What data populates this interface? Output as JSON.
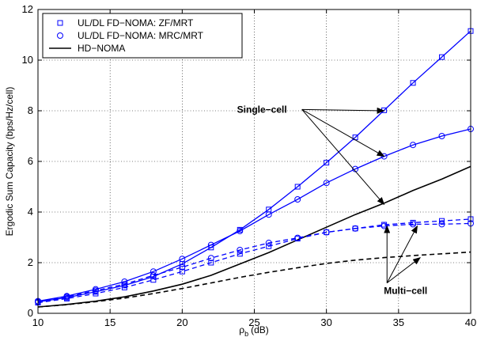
{
  "chart_data": {
    "type": "line",
    "xlabel_main": "ρ",
    "xlabel_sub": "b",
    "xlabel_unit": "(dB)",
    "ylabel": "Ergodic Sum Capacity (bps/Hz/cell)",
    "xlim": [
      10,
      40
    ],
    "ylim": [
      0,
      12
    ],
    "xticks": [
      10,
      15,
      20,
      25,
      30,
      35,
      40
    ],
    "yticks": [
      0,
      2,
      4,
      6,
      8,
      10,
      12
    ],
    "grid": "on",
    "legend_position": "top-left",
    "legend": [
      {
        "label": "UL/DL FD−NOMA: ZF/MRT",
        "marker": "square",
        "color": "#0000ff",
        "line": "none"
      },
      {
        "label": "UL/DL FD−NOMA: MRC/MRT",
        "marker": "circle",
        "color": "#0000ff",
        "line": "none"
      },
      {
        "label": "HD−NOMA",
        "marker": "none",
        "color": "#000000",
        "line": "solid"
      }
    ],
    "series": [
      {
        "name": "UL/DL FD−NOMA: ZF/MRT",
        "group": "Single−cell",
        "color": "#0000ff",
        "dash": "solid",
        "marker": "square",
        "x": [
          10,
          12,
          14,
          16,
          18,
          20,
          22,
          24,
          26,
          28,
          30,
          32,
          34,
          36,
          38,
          40
        ],
        "y": [
          0.45,
          0.62,
          0.85,
          1.1,
          1.45,
          1.95,
          2.6,
          3.3,
          4.1,
          5.0,
          5.95,
          6.95,
          8.02,
          9.1,
          10.12,
          11.15
        ]
      },
      {
        "name": "UL/DL FD−NOMA: MRC/MRT",
        "group": "Single−cell",
        "color": "#0000ff",
        "dash": "solid",
        "marker": "circle",
        "x": [
          10,
          12,
          14,
          16,
          18,
          20,
          22,
          24,
          26,
          28,
          30,
          32,
          34,
          36,
          38,
          40
        ],
        "y": [
          0.48,
          0.68,
          0.95,
          1.25,
          1.65,
          2.15,
          2.7,
          3.25,
          3.9,
          4.5,
          5.15,
          5.7,
          6.2,
          6.65,
          7.0,
          7.28
        ]
      },
      {
        "name": "HD−NOMA",
        "group": "Single−cell",
        "color": "#000000",
        "dash": "solid",
        "marker": "none",
        "x": [
          10,
          12,
          14,
          16,
          18,
          20,
          22,
          24,
          26,
          28,
          30,
          32,
          34,
          36,
          38,
          40
        ],
        "y": [
          0.25,
          0.35,
          0.48,
          0.65,
          0.88,
          1.15,
          1.5,
          1.95,
          2.4,
          2.9,
          3.4,
          3.9,
          4.35,
          4.85,
          5.3,
          5.8
        ]
      },
      {
        "name": "UL/DL FD−NOMA: ZF/MRT",
        "group": "Multi−cell",
        "color": "#0000ff",
        "dash": "dashed",
        "marker": "square",
        "x": [
          10,
          12,
          14,
          16,
          18,
          20,
          22,
          24,
          26,
          28,
          30,
          32,
          34,
          36,
          38,
          40
        ],
        "y": [
          0.42,
          0.58,
          0.78,
          1.02,
          1.32,
          1.65,
          2.0,
          2.35,
          2.65,
          2.95,
          3.2,
          3.35,
          3.5,
          3.58,
          3.65,
          3.72
        ]
      },
      {
        "name": "UL/DL FD−NOMA: MRC/MRT",
        "group": "Multi−cell",
        "color": "#0000ff",
        "dash": "dashed",
        "marker": "circle",
        "x": [
          10,
          12,
          14,
          16,
          18,
          20,
          22,
          24,
          26,
          28,
          30,
          32,
          34,
          36,
          38,
          40
        ],
        "y": [
          0.45,
          0.65,
          0.9,
          1.15,
          1.5,
          1.82,
          2.18,
          2.5,
          2.78,
          2.98,
          3.2,
          3.35,
          3.45,
          3.52,
          3.52,
          3.55
        ]
      },
      {
        "name": "HD−NOMA",
        "group": "Multi−cell",
        "color": "#000000",
        "dash": "dashed",
        "marker": "none",
        "x": [
          10,
          12,
          14,
          16,
          18,
          20,
          22,
          24,
          26,
          28,
          30,
          32,
          34,
          36,
          38,
          40
        ],
        "y": [
          0.25,
          0.34,
          0.46,
          0.6,
          0.78,
          0.98,
          1.2,
          1.42,
          1.62,
          1.8,
          1.97,
          2.1,
          2.2,
          2.28,
          2.35,
          2.42
        ]
      }
    ],
    "annotations": [
      {
        "text": "Single−cell",
        "anchor": [
          28.3,
          8.05
        ],
        "arrows_to": [
          [
            34,
            8.0
          ],
          [
            34,
            6.2
          ],
          [
            34,
            4.3
          ]
        ]
      },
      {
        "text": "Multi−cell",
        "anchor": [
          34.2,
          1.2
        ],
        "arrows_to": [
          [
            34.2,
            3.45
          ],
          [
            36.3,
            3.45
          ],
          [
            36.5,
            2.2
          ]
        ]
      }
    ]
  }
}
